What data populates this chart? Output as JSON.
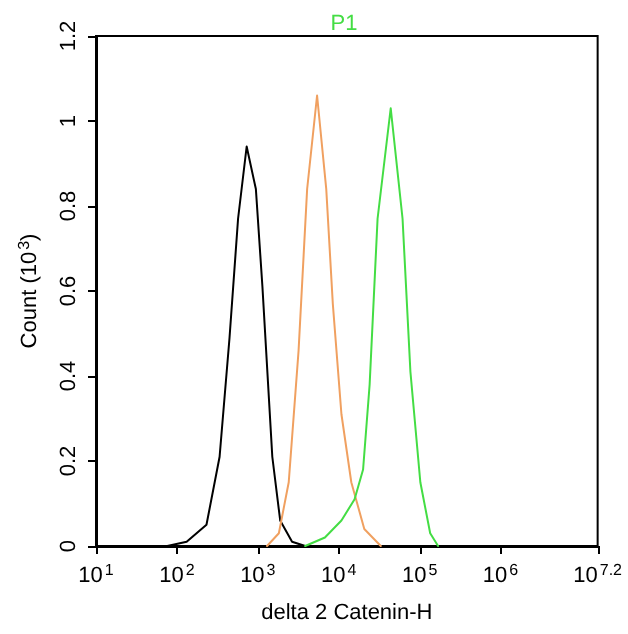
{
  "chart_data": {
    "type": "line",
    "xlabel": "delta 2 Catenin-H",
    "ylabel": "Count (10$^{3}$)",
    "log": "x",
    "grid": false,
    "legend": "top",
    "marker": "none",
    "line_style": "solid",
    "xlim": [
      10,
      15848931.9
    ],
    "ylim": [
      0,
      1.2
    ],
    "xticks": [
      {
        "value": 10,
        "label": "10$^{1}$"
      },
      {
        "value": 100,
        "label": "10$^{2}$"
      },
      {
        "value": 1000,
        "label": "10$^{3}$"
      },
      {
        "value": 10000,
        "label": "10$^{4}$"
      },
      {
        "value": 100000,
        "label": "10$^{5}$"
      },
      {
        "value": 1000000,
        "label": "10$^{6}$"
      },
      {
        "value": 15848931.9,
        "label": "10$^{7.2}$"
      }
    ],
    "yticks": [
      0,
      0.2,
      0.4,
      0.6,
      0.8,
      1,
      1.2
    ],
    "series": [
      {
        "color": "#000000",
        "x": [
          76,
          132,
          232,
          337,
          447,
          570,
          728,
          946,
          1140,
          1510,
          1890,
          2650,
          3850
        ],
        "values": [
          0,
          0.01,
          0.05,
          0.21,
          0.49,
          0.77,
          0.94,
          0.84,
          0.61,
          0.21,
          0.06,
          0.01,
          0
        ]
      },
      {
        "color": "#f0a060",
        "x": [
          1300,
          1820,
          2410,
          3190,
          4070,
          5400,
          7010,
          8450,
          10800,
          14300,
          20700,
          33100
        ],
        "values": [
          0,
          0.03,
          0.15,
          0.46,
          0.84,
          1.06,
          0.84,
          0.57,
          0.31,
          0.15,
          0.04,
          0
        ]
      },
      {
        "name": "P1",
        "color": "#44dd44",
        "x": [
          3850,
          6750,
          10800,
          15700,
          20000,
          24100,
          30200,
          43900,
          61500,
          76900,
          102000,
          135000,
          169000
        ],
        "values": [
          0,
          0.02,
          0.06,
          0.11,
          0.18,
          0.38,
          0.77,
          1.03,
          0.77,
          0.41,
          0.15,
          0.03,
          0
        ]
      }
    ]
  }
}
